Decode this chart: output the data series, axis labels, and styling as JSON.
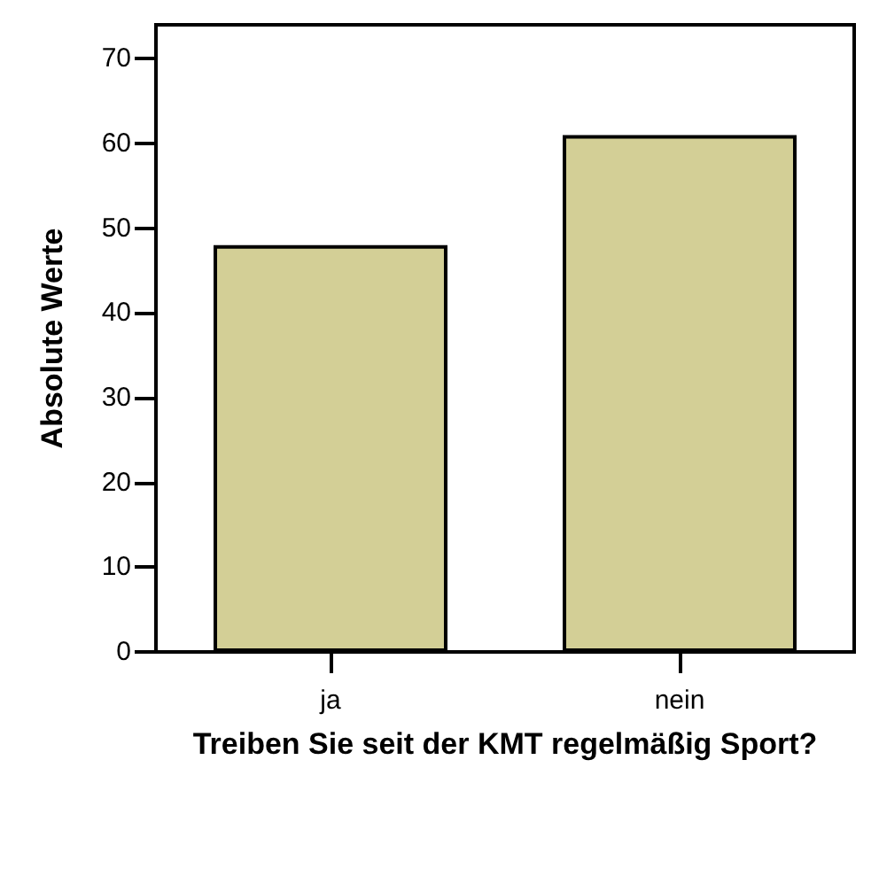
{
  "chart_data": {
    "type": "bar",
    "xlabel": "Treiben Sie seit der KMT regelmäßig Sport?",
    "ylabel": "Absolute Werte",
    "categories": [
      "ja",
      "nein"
    ],
    "values": [
      48,
      61
    ],
    "color": "#d3cf96",
    "ylim": [
      0,
      74
    ],
    "yticks": [
      0,
      10,
      20,
      30,
      40,
      50,
      60,
      70
    ],
    "grid": false
  }
}
